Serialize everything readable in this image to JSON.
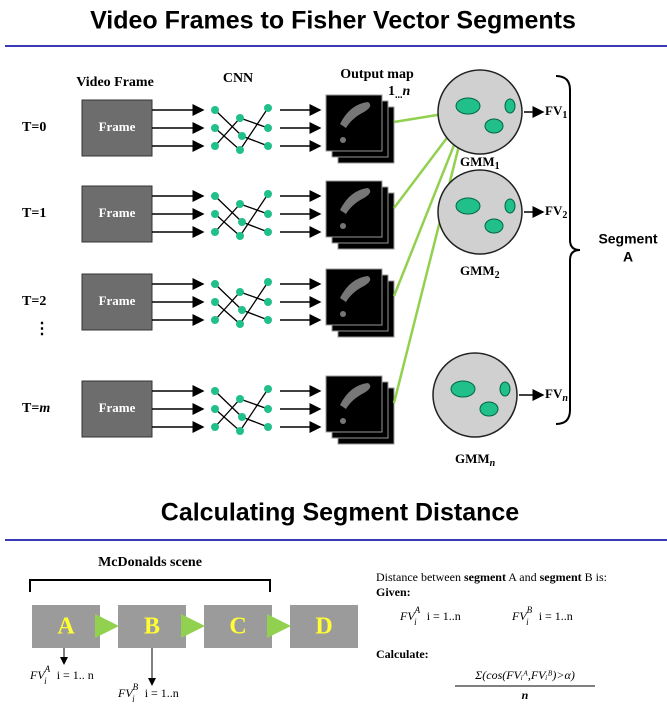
{
  "top": {
    "title": "Video Frames to Fisher Vector Segments",
    "headers": {
      "frame": "Video Frame",
      "cnn": "CNN",
      "output_map": "Output map"
    },
    "map_index": {
      "first": "1",
      "dots": "...",
      "last": "n"
    },
    "rows": [
      {
        "label": "T=",
        "index": "0",
        "frame": "Frame"
      },
      {
        "label": "T=",
        "index": "1",
        "frame": "Frame"
      },
      {
        "label": "T=",
        "index": "2",
        "frame": "Frame"
      },
      {
        "label": "T=",
        "index": "m",
        "frame": "Frame"
      }
    ],
    "ellipsis": "⋮",
    "gmms": [
      {
        "base": "GMM",
        "sub": "1"
      },
      {
        "base": "GMM",
        "sub": "2"
      },
      {
        "base": "GMM",
        "sub": "n"
      }
    ],
    "fvs": [
      {
        "base": "FV",
        "sub": "1"
      },
      {
        "base": "FV",
        "sub": "2"
      },
      {
        "base": "FV",
        "sub": "n"
      }
    ],
    "segment": [
      "Segment",
      "A"
    ]
  },
  "bottom": {
    "title": "Calculating Segment Distance",
    "scene": "McDonalds scene",
    "blocks": [
      "A",
      "B",
      "C",
      "D"
    ],
    "fv_a": {
      "base": "FV",
      "sup": "A",
      "sub": "i",
      "range": "i = 1.. n"
    },
    "fv_b": {
      "base": "FV",
      "sup": "B",
      "sub": "i",
      "range": "i = 1..n"
    },
    "distance": [
      "Distance between ",
      "segment",
      " A and ",
      "segment",
      " B is:"
    ],
    "given": "Given:",
    "given_a": {
      "base": "FV",
      "sup": "A",
      "sub": "i",
      "range": "i = 1..n"
    },
    "given_b": {
      "base": "FV",
      "sup": "B",
      "sub": "i",
      "range": "i = 1..n"
    },
    "calculate": "Calculate:",
    "formula": "Σ(cos(FVᵢᴬ,FVᵢᴮ)>α)",
    "denominator": "n"
  }
}
